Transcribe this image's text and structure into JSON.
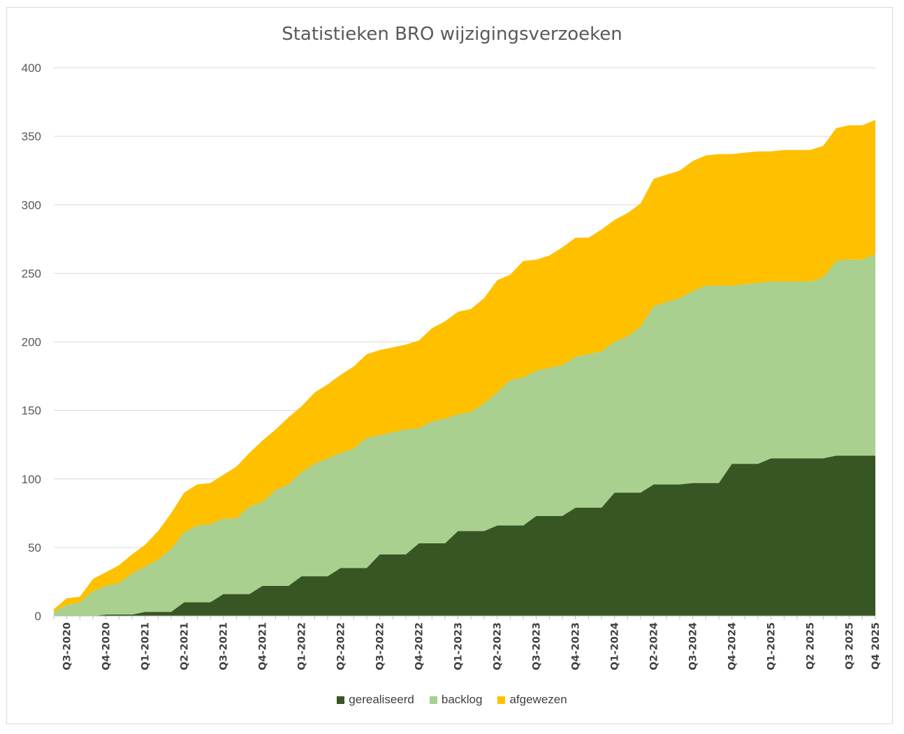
{
  "chart_data": {
    "type": "area",
    "stacked": true,
    "title": "Statistieken BRO wijzigingsverzoeken",
    "xlabel": "",
    "ylabel": "",
    "ylim": [
      0,
      400
    ],
    "yticks": [
      0,
      50,
      100,
      150,
      200,
      250,
      300,
      350,
      400
    ],
    "grid": "horizontal",
    "legend_position": "bottom",
    "x_tick_labels": [
      "Q3-2020",
      "Q4-2020",
      "Q1-2021",
      "Q2-2021",
      "Q3-2021",
      "Q4-2021",
      "Q1-2022",
      "Q2-2022",
      "Q3-2022",
      "Q4-2022",
      "Q1-2023",
      "Q2-2023",
      "Q3-2023",
      "Q4-2023",
      "Q1-2024",
      "Q2-2024",
      "Q3-2024",
      "Q4-2024",
      "Q1-2025",
      "Q2 2025",
      "Q3 2025",
      "Q4 2025"
    ],
    "series": [
      {
        "name": "gerealiseerd",
        "color": "#375623",
        "values": [
          0,
          0,
          0,
          0,
          1,
          1,
          1,
          3,
          3,
          3,
          10,
          10,
          10,
          16,
          16,
          16,
          22,
          22,
          22,
          29,
          29,
          29,
          35,
          35,
          35,
          45,
          45,
          45,
          53,
          53,
          53,
          62,
          62,
          62,
          66,
          66,
          66,
          73,
          73,
          73,
          79,
          79,
          79,
          90,
          90,
          90,
          96,
          96,
          96,
          97,
          97,
          97,
          111,
          111,
          111,
          115,
          115,
          115,
          115,
          115,
          117,
          117,
          117,
          117
        ]
      },
      {
        "name": "backlog",
        "color": "#a9d08e",
        "values": [
          3,
          8,
          10,
          18,
          21,
          23,
          30,
          33,
          38,
          46,
          51,
          56,
          57,
          55,
          55,
          64,
          61,
          70,
          74,
          76,
          82,
          86,
          84,
          87,
          95,
          87,
          89,
          91,
          84,
          89,
          91,
          85,
          87,
          93,
          97,
          106,
          108,
          106,
          108,
          110,
          110,
          112,
          114,
          110,
          114,
          121,
          130,
          133,
          136,
          140,
          144,
          144,
          130,
          131,
          132,
          129,
          129,
          129,
          129,
          132,
          142,
          143,
          143,
          147
        ]
      },
      {
        "name": "afgewezen",
        "color": "#ffc000",
        "values": [
          2,
          5,
          4,
          9,
          10,
          13,
          14,
          16,
          21,
          26,
          29,
          30,
          30,
          32,
          38,
          39,
          45,
          44,
          49,
          48,
          52,
          54,
          57,
          60,
          61,
          62,
          62,
          62,
          64,
          68,
          71,
          75,
          75,
          77,
          82,
          77,
          85,
          81,
          82,
          86,
          87,
          85,
          89,
          89,
          90,
          90,
          93,
          93,
          93,
          95,
          95,
          96,
          96,
          96,
          96,
          95,
          96,
          96,
          96,
          96,
          97,
          98,
          98,
          98
        ]
      }
    ]
  }
}
